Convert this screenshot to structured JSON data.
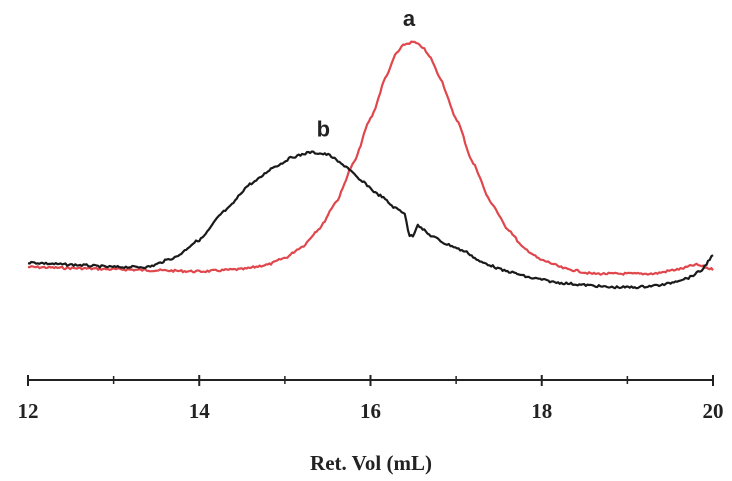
{
  "chart_data": {
    "type": "line",
    "xlabel": "Ret. Vol (mL)",
    "ylabel": "",
    "xlim": [
      12,
      20
    ],
    "ylim": [
      -0.1,
      1.05
    ],
    "xticks": [
      12,
      14,
      16,
      18,
      20
    ],
    "xticks_minor": [
      13,
      15,
      17,
      19
    ],
    "grid": false,
    "series": [
      {
        "name": "a",
        "color": "#e0474c",
        "x": [
          12.0,
          12.5,
          13.0,
          13.5,
          14.0,
          14.5,
          14.8,
          15.0,
          15.2,
          15.4,
          15.6,
          15.8,
          16.0,
          16.2,
          16.3,
          16.4,
          16.5,
          16.6,
          16.7,
          16.8,
          17.0,
          17.2,
          17.4,
          17.6,
          17.8,
          18.0,
          18.3,
          18.6,
          19.0,
          19.3,
          19.6,
          19.8,
          20.0
        ],
        "y": [
          0.0,
          -0.005,
          -0.01,
          -0.015,
          -0.02,
          -0.01,
          0.01,
          0.04,
          0.09,
          0.17,
          0.29,
          0.46,
          0.66,
          0.86,
          0.95,
          0.99,
          1.0,
          0.98,
          0.93,
          0.85,
          0.66,
          0.46,
          0.29,
          0.17,
          0.08,
          0.03,
          -0.01,
          -0.03,
          -0.03,
          -0.03,
          -0.01,
          0.01,
          -0.01
        ]
      },
      {
        "name": "b",
        "color": "#1a1a1a",
        "x": [
          12.0,
          12.5,
          13.0,
          13.4,
          13.7,
          14.0,
          14.3,
          14.6,
          14.9,
          15.1,
          15.3,
          15.5,
          15.7,
          15.9,
          16.1,
          16.3,
          16.4,
          16.45,
          16.5,
          16.55,
          16.6,
          16.7,
          16.9,
          17.1,
          17.3,
          17.6,
          17.9,
          18.2,
          18.5,
          18.8,
          19.1,
          19.4,
          19.7,
          19.85,
          20.0
        ],
        "y": [
          0.02,
          0.01,
          0.0,
          0.0,
          0.04,
          0.12,
          0.25,
          0.37,
          0.45,
          0.49,
          0.51,
          0.5,
          0.45,
          0.38,
          0.32,
          0.26,
          0.24,
          0.14,
          0.14,
          0.19,
          0.17,
          0.14,
          0.1,
          0.07,
          0.02,
          -0.02,
          -0.05,
          -0.07,
          -0.08,
          -0.09,
          -0.09,
          -0.08,
          -0.05,
          -0.02,
          0.05
        ]
      }
    ],
    "annotations": [
      {
        "text": "a",
        "x": 16.45,
        "y": 1.0
      },
      {
        "text": "b",
        "x": 15.45,
        "y": 0.51
      }
    ]
  }
}
